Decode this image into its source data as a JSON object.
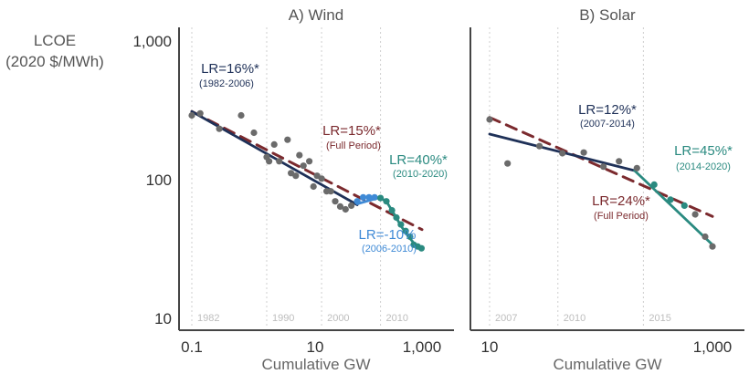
{
  "figure": {
    "y_axis_label_line1": "LCOE",
    "y_axis_label_line2": "(2020 $/MWh)",
    "y_ticks": [
      "10",
      "100",
      "1,000"
    ],
    "colors": {
      "points": "#6b6b6b",
      "early_fit": "#1f3158",
      "full_fit": "#7b2a2e",
      "recent_fit": "#2a8a80",
      "dip_fit": "#3f8ad6",
      "axis": "#444444",
      "year_grid": "#cfcfcf"
    }
  },
  "chart_data": [
    {
      "type": "scatter",
      "title": "A) Wind",
      "xlabel": "Cumulative GW",
      "ylabel": "LCOE (2020 $/MWh)",
      "x_scale": "log",
      "y_scale": "log",
      "xlim": [
        0.07,
        1500
      ],
      "ylim": [
        8.5,
        1400
      ],
      "x_ticks": [
        "0.1",
        "10",
        "1,000"
      ],
      "x_tick_values": [
        0.1,
        10,
        1000
      ],
      "year_markers": [
        {
          "year": "1982",
          "x": 0.1
        },
        {
          "year": "1990",
          "x": 2
        },
        {
          "year": "2000",
          "x": 18
        },
        {
          "year": "2010",
          "x": 190
        }
      ],
      "points": [
        {
          "x": 0.1,
          "y": 300
        },
        {
          "x": 0.14,
          "y": 310
        },
        {
          "x": 0.3,
          "y": 240
        },
        {
          "x": 0.72,
          "y": 300
        },
        {
          "x": 1.2,
          "y": 225
        },
        {
          "x": 2.0,
          "y": 150
        },
        {
          "x": 2.2,
          "y": 140
        },
        {
          "x": 2.7,
          "y": 185
        },
        {
          "x": 3.3,
          "y": 140
        },
        {
          "x": 4.6,
          "y": 200
        },
        {
          "x": 5.3,
          "y": 115
        },
        {
          "x": 6.4,
          "y": 110
        },
        {
          "x": 7.4,
          "y": 155
        },
        {
          "x": 8.7,
          "y": 130
        },
        {
          "x": 11,
          "y": 140
        },
        {
          "x": 13,
          "y": 92
        },
        {
          "x": 15,
          "y": 110
        },
        {
          "x": 18,
          "y": 105
        },
        {
          "x": 22,
          "y": 85
        },
        {
          "x": 26,
          "y": 85
        },
        {
          "x": 31,
          "y": 72
        },
        {
          "x": 38,
          "y": 66
        },
        {
          "x": 47,
          "y": 63
        },
        {
          "x": 59,
          "y": 67
        },
        {
          "x": 75,
          "y": 72
        },
        {
          "x": 95,
          "y": 77
        },
        {
          "x": 120,
          "y": 77
        },
        {
          "x": 150,
          "y": 77
        },
        {
          "x": 190,
          "y": 76
        },
        {
          "x": 240,
          "y": 72
        },
        {
          "x": 300,
          "y": 62
        },
        {
          "x": 360,
          "y": 55
        },
        {
          "x": 430,
          "y": 49
        },
        {
          "x": 520,
          "y": 44
        },
        {
          "x": 620,
          "y": 40
        },
        {
          "x": 720,
          "y": 35
        },
        {
          "x": 840,
          "y": 34
        },
        {
          "x": 980,
          "y": 33
        }
      ],
      "fits": [
        {
          "name": "1982-2006",
          "style": "solid",
          "color_key": "early_fit",
          "from": [
            0.1,
            320
          ],
          "to": [
            75,
            68
          ]
        },
        {
          "name": "Full Period",
          "style": "dashed",
          "color_key": "full_fit",
          "from": [
            0.1,
            320
          ],
          "to": [
            1000,
            45
          ]
        },
        {
          "name": "2006-2010",
          "style": "solid",
          "color_key": "dip_fit",
          "from": [
            75,
            69
          ],
          "to": [
            190,
            77
          ]
        },
        {
          "name": "2010-2020",
          "style": "solid",
          "color_key": "recent_fit",
          "path": [
            [
              190,
              77
            ],
            [
              250,
              70
            ],
            [
              330,
              58
            ],
            [
              430,
              48
            ],
            [
              560,
              41
            ],
            [
              720,
              36
            ],
            [
              1000,
              33
            ]
          ]
        }
      ],
      "annotations": [
        {
          "text": "LR=16%*",
          "sub": "(1982-2006)",
          "color_key": "early_fit"
        },
        {
          "text": "LR=15%*",
          "sub": "(Full Period)",
          "color_key": "full_fit"
        },
        {
          "text": "LR=40%*",
          "sub": "(2010-2020)",
          "color_key": "recent_fit"
        },
        {
          "text": "LR=-10%",
          "sub": "(2006-2010)",
          "color_key": "dip_fit"
        }
      ]
    },
    {
      "type": "scatter",
      "title": "B) Solar",
      "xlabel": "Cumulative GW",
      "ylabel": "LCOE (2020 $/MWh)",
      "x_scale": "log",
      "y_scale": "log",
      "xlim": [
        8,
        1500
      ],
      "ylim": [
        8.5,
        1400
      ],
      "x_ticks": [
        "10",
        "1,000"
      ],
      "x_tick_values": [
        10,
        1000
      ],
      "year_markers": [
        {
          "year": "2007",
          "x": 10
        },
        {
          "year": "2010",
          "x": 41
        },
        {
          "year": "2015",
          "x": 240
        }
      ],
      "points": [
        {
          "x": 10,
          "y": 280
        },
        {
          "x": 14.5,
          "y": 135
        },
        {
          "x": 28,
          "y": 180
        },
        {
          "x": 45,
          "y": 160
        },
        {
          "x": 70,
          "y": 162
        },
        {
          "x": 105,
          "y": 128
        },
        {
          "x": 145,
          "y": 140
        },
        {
          "x": 210,
          "y": 125
        },
        {
          "x": 300,
          "y": 95
        },
        {
          "x": 420,
          "y": 74
        },
        {
          "x": 560,
          "y": 67
        },
        {
          "x": 700,
          "y": 58
        },
        {
          "x": 860,
          "y": 40
        },
        {
          "x": 1000,
          "y": 34
        }
      ],
      "fits": [
        {
          "name": "2007-2014",
          "style": "solid",
          "color_key": "early_fit",
          "from": [
            10,
            220
          ],
          "to": [
            200,
            120
          ]
        },
        {
          "name": "Full Period",
          "style": "dashed",
          "color_key": "full_fit",
          "from": [
            10,
            290
          ],
          "to": [
            1000,
            56
          ]
        },
        {
          "name": "2014-2020",
          "style": "solid",
          "color_key": "recent_fit",
          "from": [
            200,
            120
          ],
          "to": [
            1000,
            35
          ]
        }
      ],
      "annotations": [
        {
          "text": "LR=12%*",
          "sub": "(2007-2014)",
          "color_key": "early_fit"
        },
        {
          "text": "LR=45%*",
          "sub": "(2014-2020)",
          "color_key": "recent_fit"
        },
        {
          "text": "LR=24%*",
          "sub": "(Full Period)",
          "color_key": "full_fit"
        }
      ]
    }
  ]
}
